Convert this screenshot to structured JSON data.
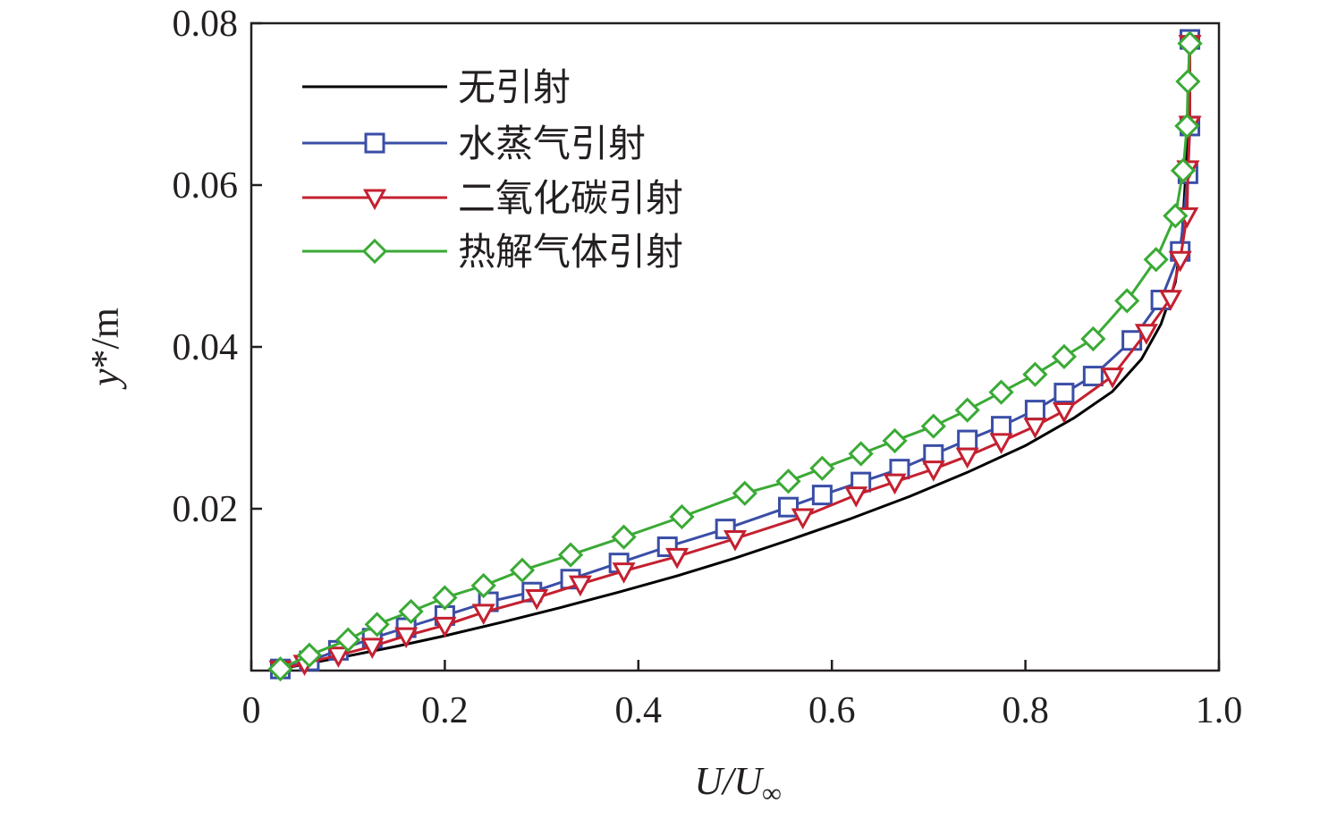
{
  "chart_data": {
    "type": "line",
    "title": "",
    "xlabel_main": "U/U",
    "xlabel_sub": "∞",
    "ylabel_var": "y",
    "ylabel_unit": "*/m",
    "xlim": [
      0,
      1.0
    ],
    "ylim": [
      0,
      0.08
    ],
    "xticks": [
      0,
      0.2,
      0.4,
      0.6,
      0.8,
      1.0
    ],
    "xtick_labels": [
      "0",
      "0.2",
      "0.4",
      "0.6",
      "0.8",
      "1.0"
    ],
    "yticks": [
      0.02,
      0.04,
      0.06,
      0.08
    ],
    "ytick_labels": [
      "0.02",
      "0.04",
      "0.06",
      "0.08"
    ],
    "grid": false,
    "legend_position": "top-left",
    "series": [
      {
        "name": "无引射",
        "color": "#000000",
        "marker": "none",
        "x": [
          0.03,
          0.06,
          0.1,
          0.15,
          0.2,
          0.26,
          0.32,
          0.38,
          0.44,
          0.5,
          0.56,
          0.62,
          0.68,
          0.74,
          0.8,
          0.85,
          0.89,
          0.92,
          0.94,
          0.955,
          0.962,
          0.966,
          0.968,
          0.97
        ],
        "y": [
          0.0002,
          0.0009,
          0.0018,
          0.003,
          0.0043,
          0.006,
          0.0078,
          0.0097,
          0.0117,
          0.0139,
          0.0163,
          0.0188,
          0.0215,
          0.0245,
          0.0278,
          0.0312,
          0.0345,
          0.0385,
          0.0428,
          0.048,
          0.054,
          0.062,
          0.07,
          0.079
        ]
      },
      {
        "name": "水蒸气引射",
        "color": "#3a4ea6",
        "marker": "square",
        "x": [
          0.03,
          0.06,
          0.09,
          0.125,
          0.16,
          0.2,
          0.245,
          0.29,
          0.33,
          0.38,
          0.43,
          0.49,
          0.555,
          0.59,
          0.63,
          0.67,
          0.705,
          0.74,
          0.775,
          0.81,
          0.84,
          0.87,
          0.91,
          0.94,
          0.96,
          0.968,
          0.97,
          0.97
        ],
        "y": [
          0.0002,
          0.0012,
          0.0025,
          0.004,
          0.0053,
          0.0068,
          0.0085,
          0.0097,
          0.0113,
          0.0133,
          0.0153,
          0.0175,
          0.0202,
          0.0217,
          0.0233,
          0.0249,
          0.0267,
          0.0285,
          0.0302,
          0.0322,
          0.0343,
          0.0364,
          0.0408,
          0.0458,
          0.0518,
          0.0614,
          0.0673,
          0.078
        ]
      },
      {
        "name": "二氧化碳引射",
        "color": "#c42030",
        "marker": "triangle-down",
        "x": [
          0.03,
          0.055,
          0.09,
          0.125,
          0.16,
          0.2,
          0.24,
          0.295,
          0.34,
          0.385,
          0.44,
          0.5,
          0.57,
          0.625,
          0.665,
          0.705,
          0.74,
          0.775,
          0.81,
          0.84,
          0.89,
          0.925,
          0.95,
          0.96,
          0.967,
          0.968,
          0.97,
          0.97
        ],
        "y": [
          0.0002,
          0.0009,
          0.0019,
          0.003,
          0.0043,
          0.0056,
          0.0072,
          0.009,
          0.0107,
          0.0123,
          0.0141,
          0.0163,
          0.019,
          0.0217,
          0.0233,
          0.0249,
          0.0265,
          0.0283,
          0.0302,
          0.0321,
          0.0364,
          0.0418,
          0.046,
          0.0508,
          0.0562,
          0.062,
          0.0675,
          0.0775
        ]
      },
      {
        "name": "热解气体引射",
        "color": "#3aaa35",
        "marker": "diamond",
        "x": [
          0.03,
          0.06,
          0.1,
          0.13,
          0.165,
          0.2,
          0.24,
          0.28,
          0.33,
          0.385,
          0.445,
          0.51,
          0.555,
          0.59,
          0.63,
          0.665,
          0.705,
          0.74,
          0.775,
          0.81,
          0.84,
          0.87,
          0.905,
          0.935,
          0.955,
          0.963,
          0.967,
          0.968,
          0.97
        ],
        "y": [
          0.0002,
          0.0019,
          0.0038,
          0.0057,
          0.0073,
          0.009,
          0.0105,
          0.0124,
          0.0143,
          0.0165,
          0.019,
          0.0219,
          0.0234,
          0.025,
          0.0268,
          0.0284,
          0.0302,
          0.0322,
          0.0344,
          0.0366,
          0.0388,
          0.041,
          0.0457,
          0.0508,
          0.0562,
          0.0618,
          0.0673,
          0.0728,
          0.0775
        ]
      }
    ]
  }
}
